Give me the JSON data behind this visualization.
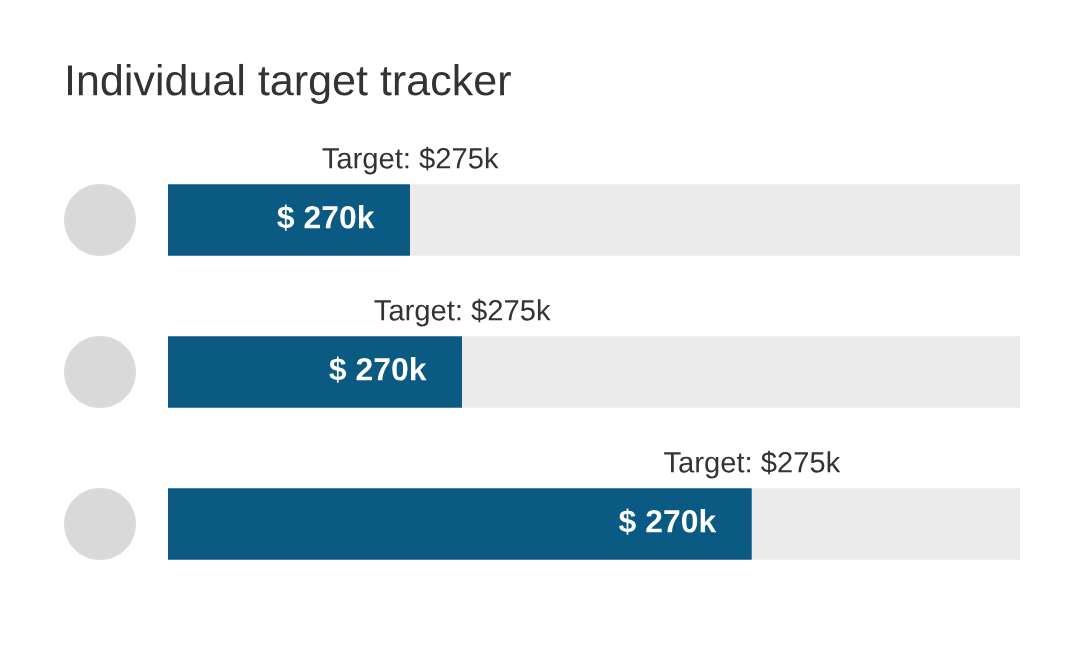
{
  "chart_data": [
    {
      "type": "bar",
      "orientation": "horizontal",
      "stacked": true,
      "title": "Individual target tracker",
      "categories": [
        null
      ],
      "series": [
        {
          "color": "#0b5a84",
          "values": [
            270
          ],
          "value_labels": [
            "$ 270k"
          ]
        },
        {
          "color": "#ebebeb",
          "values": [
            680
          ]
        }
      ],
      "annotations": [
        "Target: $275k"
      ]
    },
    {
      "type": "bar",
      "orientation": "horizontal",
      "stacked": true,
      "categories": [
        null
      ],
      "series": [
        {
          "color": "#0b5a84",
          "values": [
            270
          ],
          "value_labels": [
            "$ 270k"
          ]
        },
        {
          "color": "#ebebeb",
          "values": [
            512
          ]
        }
      ],
      "annotations": [
        "Target: $275k"
      ]
    },
    {
      "type": "bar",
      "orientation": "horizontal",
      "stacked": true,
      "categories": [
        null
      ],
      "series": [
        {
          "color": "#0b5a84",
          "values": [
            270
          ],
          "value_labels": [
            "$ 270k"
          ]
        },
        {
          "color": "#ebebeb",
          "values": [
            124
          ]
        }
      ],
      "annotations": [
        "Target: $275k"
      ]
    }
  ]
}
